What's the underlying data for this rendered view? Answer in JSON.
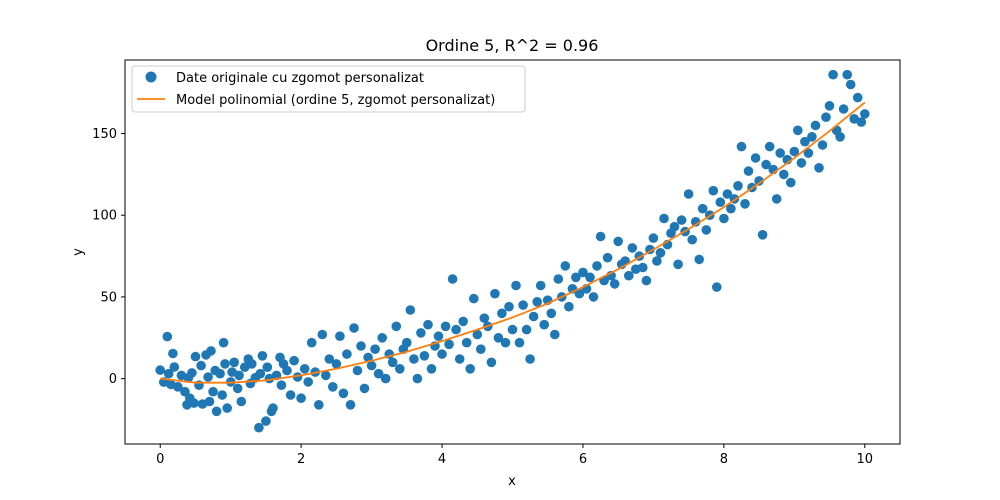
{
  "chart_data": {
    "type": "scatter",
    "title": "Ordine 5, R^2 = 0.96",
    "xlabel": "x",
    "ylabel": "y",
    "xlim": [
      -0.5,
      10.5
    ],
    "ylim": [
      -40,
      195
    ],
    "xticks": [
      0,
      2,
      4,
      6,
      8,
      10
    ],
    "yticks": [
      0,
      50,
      100,
      150
    ],
    "grid": false,
    "legend_position": "top-left",
    "colors": {
      "scatter": "#1f77b4",
      "line": "#ff7f0e"
    },
    "series": [
      {
        "name": "Date originale cu zgomot personalizat",
        "kind": "scatter",
        "points": [
          [
            0.0,
            5.2
          ],
          [
            0.05,
            -2.1
          ],
          [
            0.1,
            25.7
          ],
          [
            0.12,
            3.0
          ],
          [
            0.15,
            -3.5
          ],
          [
            0.18,
            15.4
          ],
          [
            0.2,
            7.1
          ],
          [
            0.25,
            -5.0
          ],
          [
            0.3,
            2.0
          ],
          [
            0.35,
            -8.0
          ],
          [
            0.38,
            -16.0
          ],
          [
            0.4,
            0.5
          ],
          [
            0.42,
            -12.0
          ],
          [
            0.45,
            3.5
          ],
          [
            0.48,
            -15.0
          ],
          [
            0.5,
            13.5
          ],
          [
            0.55,
            -4.0
          ],
          [
            0.58,
            8.0
          ],
          [
            0.6,
            -15.5
          ],
          [
            0.65,
            14.5
          ],
          [
            0.68,
            1.0
          ],
          [
            0.7,
            -14.0
          ],
          [
            0.72,
            17.0
          ],
          [
            0.75,
            -8.0
          ],
          [
            0.78,
            5.0
          ],
          [
            0.8,
            -20.0
          ],
          [
            0.85,
            3.0
          ],
          [
            0.88,
            -10.0
          ],
          [
            0.9,
            22.0
          ],
          [
            0.92,
            9.0
          ],
          [
            0.95,
            -18.0
          ],
          [
            1.0,
            -2.0
          ],
          [
            1.02,
            4.0
          ],
          [
            1.05,
            10.0
          ],
          [
            1.1,
            -6.0
          ],
          [
            1.12,
            2.0
          ],
          [
            1.15,
            -14.0
          ],
          [
            1.2,
            7.0
          ],
          [
            1.25,
            12.0
          ],
          [
            1.28,
            -3.0
          ],
          [
            1.3,
            9.0
          ],
          [
            1.35,
            0.5
          ],
          [
            1.4,
            -30.0
          ],
          [
            1.42,
            3.0
          ],
          [
            1.45,
            14.0
          ],
          [
            1.5,
            -26.0
          ],
          [
            1.52,
            7.0
          ],
          [
            1.55,
            0.0
          ],
          [
            1.58,
            -20.0
          ],
          [
            1.6,
            -18.0
          ],
          [
            1.65,
            2.0
          ],
          [
            1.7,
            13.0
          ],
          [
            1.72,
            -4.0
          ],
          [
            1.75,
            9.0
          ],
          [
            1.8,
            5.0
          ],
          [
            1.85,
            -10.0
          ],
          [
            1.9,
            11.0
          ],
          [
            1.95,
            1.0
          ],
          [
            2.0,
            -12.0
          ],
          [
            2.05,
            6.0
          ],
          [
            2.1,
            -2.0
          ],
          [
            2.15,
            22.0
          ],
          [
            2.2,
            4.0
          ],
          [
            2.25,
            -16.0
          ],
          [
            2.3,
            27.0
          ],
          [
            2.35,
            2.0
          ],
          [
            2.4,
            12.0
          ],
          [
            2.45,
            -5.0
          ],
          [
            2.5,
            9.0
          ],
          [
            2.55,
            26.0
          ],
          [
            2.6,
            -9.0
          ],
          [
            2.65,
            15.0
          ],
          [
            2.7,
            -16.0
          ],
          [
            2.75,
            31.0
          ],
          [
            2.8,
            5.0
          ],
          [
            2.85,
            20.0
          ],
          [
            2.9,
            -6.0
          ],
          [
            2.95,
            13.0
          ],
          [
            3.0,
            8.0
          ],
          [
            3.05,
            18.0
          ],
          [
            3.1,
            3.0
          ],
          [
            3.15,
            25.0
          ],
          [
            3.2,
            0.0
          ],
          [
            3.25,
            15.0
          ],
          [
            3.3,
            10.0
          ],
          [
            3.35,
            32.0
          ],
          [
            3.4,
            6.0
          ],
          [
            3.45,
            18.0
          ],
          [
            3.5,
            22.0
          ],
          [
            3.55,
            42.0
          ],
          [
            3.6,
            12.0
          ],
          [
            3.65,
            0.0
          ],
          [
            3.7,
            28.0
          ],
          [
            3.75,
            14.0
          ],
          [
            3.8,
            33.0
          ],
          [
            3.85,
            6.0
          ],
          [
            3.9,
            20.0
          ],
          [
            3.95,
            26.0
          ],
          [
            4.0,
            15.0
          ],
          [
            4.05,
            32.0
          ],
          [
            4.1,
            21.0
          ],
          [
            4.15,
            61.0
          ],
          [
            4.2,
            30.0
          ],
          [
            4.25,
            12.0
          ],
          [
            4.3,
            35.0
          ],
          [
            4.35,
            22.0
          ],
          [
            4.4,
            6.0
          ],
          [
            4.45,
            49.0
          ],
          [
            4.5,
            27.0
          ],
          [
            4.55,
            18.0
          ],
          [
            4.6,
            37.0
          ],
          [
            4.65,
            32.0
          ],
          [
            4.7,
            10.0
          ],
          [
            4.75,
            52.0
          ],
          [
            4.8,
            25.0
          ],
          [
            4.85,
            40.0
          ],
          [
            4.9,
            22.0
          ],
          [
            4.95,
            44.0
          ],
          [
            5.0,
            30.0
          ],
          [
            5.05,
            57.0
          ],
          [
            5.1,
            22.0
          ],
          [
            5.15,
            45.0
          ],
          [
            5.2,
            30.0
          ],
          [
            5.25,
            12.0
          ],
          [
            5.3,
            38.0
          ],
          [
            5.35,
            47.0
          ],
          [
            5.4,
            57.0
          ],
          [
            5.45,
            33.0
          ],
          [
            5.5,
            48.0
          ],
          [
            5.55,
            40.0
          ],
          [
            5.6,
            27.0
          ],
          [
            5.65,
            61.0
          ],
          [
            5.7,
            50.0
          ],
          [
            5.75,
            69.0
          ],
          [
            5.8,
            44.0
          ],
          [
            5.85,
            55.0
          ],
          [
            5.9,
            62.0
          ],
          [
            5.95,
            52.0
          ],
          [
            6.0,
            65.0
          ],
          [
            6.05,
            55.0
          ],
          [
            6.1,
            62.0
          ],
          [
            6.15,
            50.0
          ],
          [
            6.2,
            69.0
          ],
          [
            6.25,
            87.0
          ],
          [
            6.3,
            60.0
          ],
          [
            6.35,
            74.0
          ],
          [
            6.4,
            63.0
          ],
          [
            6.45,
            58.0
          ],
          [
            6.5,
            84.0
          ],
          [
            6.55,
            70.0
          ],
          [
            6.6,
            72.0
          ],
          [
            6.65,
            63.0
          ],
          [
            6.7,
            80.0
          ],
          [
            6.75,
            67.0
          ],
          [
            6.8,
            75.0
          ],
          [
            6.85,
            68.0
          ],
          [
            6.9,
            60.0
          ],
          [
            6.95,
            79.0
          ],
          [
            7.0,
            86.0
          ],
          [
            7.05,
            72.0
          ],
          [
            7.1,
            77.0
          ],
          [
            7.15,
            98.0
          ],
          [
            7.2,
            82.0
          ],
          [
            7.25,
            89.0
          ],
          [
            7.3,
            93.0
          ],
          [
            7.35,
            70.0
          ],
          [
            7.4,
            97.0
          ],
          [
            7.45,
            90.0
          ],
          [
            7.5,
            113.0
          ],
          [
            7.55,
            85.0
          ],
          [
            7.6,
            96.0
          ],
          [
            7.65,
            73.0
          ],
          [
            7.7,
            104.0
          ],
          [
            7.75,
            91.0
          ],
          [
            7.8,
            100.0
          ],
          [
            7.85,
            115.0
          ],
          [
            7.9,
            56.0
          ],
          [
            7.95,
            108.0
          ],
          [
            8.0,
            98.0
          ],
          [
            8.05,
            113.0
          ],
          [
            8.1,
            104.0
          ],
          [
            8.15,
            110.0
          ],
          [
            8.2,
            118.0
          ],
          [
            8.25,
            142.0
          ],
          [
            8.3,
            107.0
          ],
          [
            8.35,
            127.0
          ],
          [
            8.4,
            117.0
          ],
          [
            8.45,
            135.0
          ],
          [
            8.5,
            121.0
          ],
          [
            8.55,
            88.0
          ],
          [
            8.6,
            131.0
          ],
          [
            8.65,
            142.0
          ],
          [
            8.7,
            128.0
          ],
          [
            8.75,
            110.0
          ],
          [
            8.8,
            138.0
          ],
          [
            8.85,
            125.0
          ],
          [
            8.9,
            134.0
          ],
          [
            8.95,
            120.0
          ],
          [
            9.0,
            139.0
          ],
          [
            9.05,
            152.0
          ],
          [
            9.1,
            132.0
          ],
          [
            9.15,
            145.0
          ],
          [
            9.2,
            138.0
          ],
          [
            9.25,
            148.0
          ],
          [
            9.3,
            155.0
          ],
          [
            9.35,
            129.0
          ],
          [
            9.4,
            143.0
          ],
          [
            9.45,
            160.0
          ],
          [
            9.5,
            167.0
          ],
          [
            9.55,
            186.0
          ],
          [
            9.6,
            152.0
          ],
          [
            9.65,
            148.0
          ],
          [
            9.7,
            165.0
          ],
          [
            9.75,
            186.0
          ],
          [
            9.8,
            180.0
          ],
          [
            9.85,
            159.0
          ],
          [
            9.9,
            172.0
          ],
          [
            9.95,
            157.0
          ],
          [
            10.0,
            162.0
          ]
        ]
      },
      {
        "name": "Model polinomial (ordine 5, zgomot personalizat)",
        "kind": "line",
        "x": [
          0,
          0.5,
          1,
          1.5,
          2,
          2.5,
          3,
          3.5,
          4,
          4.5,
          5,
          5.5,
          6,
          6.5,
          7,
          7.5,
          8,
          8.5,
          9,
          9.5,
          10
        ],
        "y": [
          0,
          -2.5,
          -2.5,
          -1.0,
          2.0,
          6.0,
          11.0,
          16.5,
          23.0,
          30.0,
          37.5,
          46.0,
          56.0,
          67.0,
          79.0,
          91.5,
          105.0,
          119.5,
          135.0,
          151.5,
          169.0
        ]
      }
    ]
  }
}
